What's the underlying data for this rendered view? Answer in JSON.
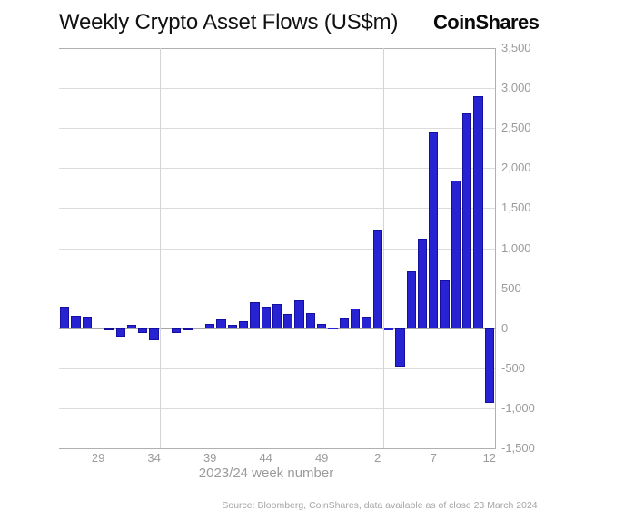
{
  "header": {
    "title": "Weekly Crypto Asset Flows (US$m)",
    "logo": "CoinShares"
  },
  "chart_data": {
    "type": "bar",
    "title": "Weekly Crypto Asset Flows (US$m)",
    "xlabel": "2023/24 week number",
    "ylabel": "",
    "ylim": [
      -1500,
      3500
    ],
    "grid": "horizontal gridlines every 500; vertical gridlines every 10 weeks; frame on top, bottom and right; y labels on right side",
    "legend_position": "none",
    "bar_color": "#2823d2",
    "bar_border_color": "#150fa0",
    "categories": [
      26,
      27,
      28,
      29,
      30,
      31,
      32,
      33,
      34,
      35,
      36,
      37,
      38,
      39,
      40,
      41,
      42,
      43,
      44,
      45,
      46,
      47,
      48,
      49,
      50,
      51,
      52,
      1,
      2,
      3,
      4,
      5,
      6,
      7,
      8,
      9,
      10,
      11,
      12
    ],
    "values": [
      270,
      160,
      150,
      0,
      -30,
      -105,
      40,
      -60,
      -155,
      0,
      -55,
      -30,
      10,
      55,
      110,
      40,
      85,
      330,
      265,
      305,
      180,
      350,
      190,
      50,
      -20,
      125,
      250,
      150,
      1220,
      -25,
      -480,
      710,
      1120,
      2450,
      600,
      1840,
      2680,
      2900,
      -930
    ],
    "x_ticks": [
      {
        "week": 29,
        "label": "29"
      },
      {
        "week": 34,
        "label": "34"
      },
      {
        "week": 39,
        "label": "39"
      },
      {
        "week": 44,
        "label": "44"
      },
      {
        "week": 49,
        "label": "49"
      },
      {
        "week": 2,
        "label": "2"
      },
      {
        "week": 7,
        "label": "7"
      },
      {
        "week": 12,
        "label": "12"
      }
    ],
    "y_ticks": [
      {
        "value": 3500,
        "label": "3,500"
      },
      {
        "value": 3000,
        "label": "3,000"
      },
      {
        "value": 2500,
        "label": "2,500"
      },
      {
        "value": 2000,
        "label": "2,000"
      },
      {
        "value": 1500,
        "label": "1,500"
      },
      {
        "value": 1000,
        "label": "1,000"
      },
      {
        "value": 500,
        "label": "500"
      },
      {
        "value": 0,
        "label": "0"
      },
      {
        "value": -500,
        "label": "-500"
      },
      {
        "value": -1000,
        "label": "-1,000"
      },
      {
        "value": -1500,
        "label": "-1,500"
      }
    ],
    "vertical_gridline_after_weeks": [
      34,
      44,
      2
    ]
  },
  "footer": {
    "source": "Source: Bloomberg, CoinShares, data available as of close 23 March 2024"
  }
}
